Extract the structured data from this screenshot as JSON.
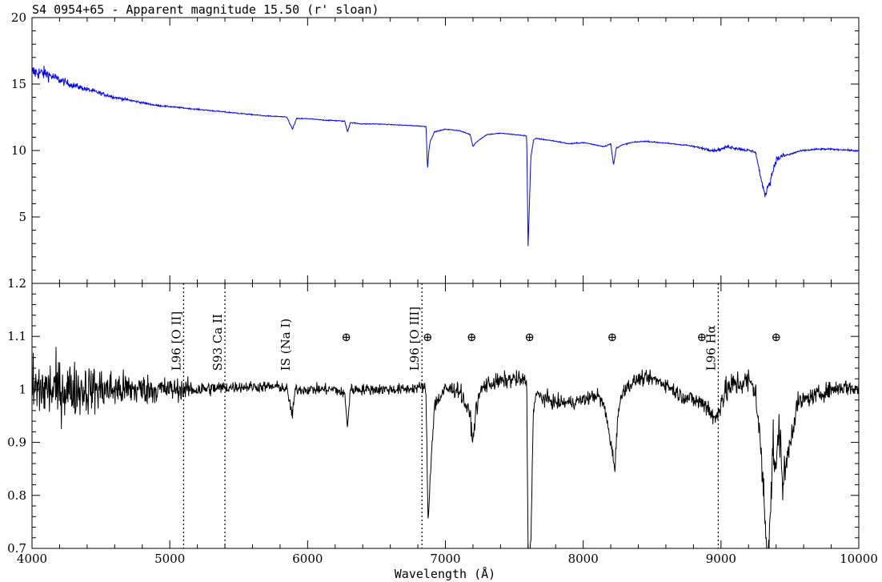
{
  "chart_data": [
    {
      "type": "line",
      "title": "S4 0954+65 - Apparent magnitude 15.50 (r' sloan)",
      "xlabel": "",
      "ylabel": "",
      "xlim": [
        4000,
        10000
      ],
      "ylim": [
        0,
        20
      ],
      "yticks": [
        5,
        10,
        15,
        20
      ],
      "series": [
        {
          "color": "#0000ff",
          "x": [
            4000,
            4100,
            4200,
            4300,
            4400,
            4500,
            4600,
            4700,
            4800,
            4900,
            5000,
            5100,
            5200,
            5300,
            5400,
            5500,
            5600,
            5700,
            5800,
            5850,
            5890,
            5920,
            6000,
            6100,
            6200,
            6270,
            6290,
            6310,
            6400,
            6500,
            6600,
            6700,
            6800,
            6860,
            6870,
            6880,
            6890,
            6920,
            7000,
            7100,
            7180,
            7200,
            7220,
            7260,
            7300,
            7400,
            7500,
            7590,
            7600,
            7610,
            7620,
            7640,
            7660,
            7700,
            7800,
            7900,
            8000,
            8100,
            8150,
            8200,
            8220,
            8240,
            8280,
            8350,
            8450,
            8550,
            8650,
            8750,
            8800,
            8850,
            8900,
            8950,
            9000,
            9050,
            9100,
            9150,
            9200,
            9250,
            9300,
            9320,
            9340,
            9360,
            9380,
            9400,
            9450,
            9500,
            9550,
            9600,
            9650,
            9700,
            9800,
            9900,
            10000
          ],
          "values": [
            15.9,
            15.8,
            15.3,
            14.9,
            14.6,
            14.3,
            14.0,
            13.8,
            13.6,
            13.4,
            13.3,
            13.2,
            13.1,
            13.0,
            12.9,
            12.8,
            12.7,
            12.6,
            12.55,
            12.5,
            11.6,
            12.4,
            12.4,
            12.3,
            12.25,
            12.2,
            11.4,
            12.1,
            12.0,
            12.0,
            11.95,
            11.9,
            11.85,
            11.8,
            8.6,
            10.0,
            10.7,
            11.4,
            11.6,
            11.5,
            11.2,
            10.3,
            10.6,
            10.9,
            11.2,
            11.3,
            11.2,
            11.1,
            2.8,
            6.0,
            9.5,
            10.8,
            10.9,
            10.85,
            10.7,
            10.5,
            10.6,
            10.4,
            10.3,
            10.5,
            8.9,
            10.2,
            10.4,
            10.6,
            10.7,
            10.6,
            10.5,
            10.4,
            10.3,
            10.2,
            10.1,
            10.0,
            10.1,
            10.3,
            10.2,
            10.1,
            10.0,
            9.9,
            7.4,
            6.6,
            7.3,
            7.8,
            8.6,
            9.3,
            9.6,
            9.7,
            9.9,
            10.0,
            10.05,
            10.1,
            10.1,
            10.05,
            9.95
          ],
          "noise": [
            1.2,
            0.9,
            0.6,
            0.45,
            0.35,
            0.28,
            0.22,
            0.18,
            0.15,
            0.12,
            0.1,
            0.1,
            0.09,
            0.09,
            0.08,
            0.08,
            0.07,
            0.07,
            0.07,
            0.07,
            0.07,
            0.07,
            0.07,
            0.07,
            0.07,
            0.07,
            0.07,
            0.07,
            0.06,
            0.06,
            0.06,
            0.06,
            0.06,
            0.06,
            0.06,
            0.06,
            0.06,
            0.06,
            0.06,
            0.06,
            0.06,
            0.06,
            0.06,
            0.06,
            0.06,
            0.06,
            0.06,
            0.06,
            0.06,
            0.06,
            0.06,
            0.08,
            0.08,
            0.08,
            0.08,
            0.08,
            0.08,
            0.08,
            0.08,
            0.08,
            0.08,
            0.08,
            0.08,
            0.08,
            0.08,
            0.08,
            0.08,
            0.1,
            0.12,
            0.15,
            0.2,
            0.2,
            0.2,
            0.25,
            0.25,
            0.25,
            0.2,
            0.2,
            0.3,
            0.3,
            0.5,
            0.6,
            0.6,
            0.5,
            0.4,
            0.15,
            0.15,
            0.12,
            0.12,
            0.12,
            0.12,
            0.12,
            0.12
          ]
        }
      ]
    },
    {
      "type": "line",
      "title": "",
      "xlabel": "Wavelength (Å)",
      "ylabel": "",
      "xlim": [
        4000,
        10000
      ],
      "ylim": [
        0.7,
        1.2
      ],
      "xticks": [
        4000,
        5000,
        6000,
        7000,
        8000,
        9000,
        10000
      ],
      "yticks": [
        0.7,
        0.8,
        0.9,
        1,
        1.1,
        1.2
      ],
      "ytick_labels": [
        "0.7",
        "0.8",
        "0.9",
        "1",
        "1.1",
        "1.2"
      ],
      "series": [
        {
          "color": "#000000",
          "x": [
            4000,
            4300,
            4600,
            4900,
            5200,
            5500,
            5800,
            5850,
            5890,
            5910,
            6000,
            6200,
            6270,
            6290,
            6310,
            6500,
            6700,
            6850,
            6860,
            6875,
            6890,
            6920,
            7000,
            7100,
            7180,
            7200,
            7220,
            7260,
            7300,
            7500,
            7590,
            7600,
            7610,
            7620,
            7640,
            7660,
            7700,
            7800,
            7900,
            8000,
            8100,
            8150,
            8180,
            8200,
            8230,
            8250,
            8290,
            8400,
            8500,
            8600,
            8700,
            8800,
            8900,
            8960,
            9000,
            9050,
            9100,
            9200,
            9250,
            9300,
            9320,
            9340,
            9360,
            9380,
            9400,
            9420,
            9450,
            9500,
            9550,
            9600,
            9700,
            9800,
            9900,
            10000
          ],
          "values": [
            1.0,
            1.0,
            1.0,
            1.0,
            1.0,
            1.005,
            1.005,
            1.0,
            0.95,
            1.0,
            1.0,
            1.0,
            0.99,
            0.93,
            1.0,
            1.0,
            1.0,
            1.005,
            0.98,
            0.74,
            0.84,
            0.97,
            1.0,
            1.0,
            0.95,
            0.9,
            0.96,
            1.0,
            1.01,
            1.02,
            1.015,
            0.69,
            0.66,
            0.72,
            0.97,
            0.99,
            0.985,
            0.975,
            0.975,
            0.98,
            0.99,
            0.97,
            0.93,
            0.9,
            0.85,
            0.95,
            1.0,
            1.02,
            1.02,
            1.01,
            0.99,
            0.98,
            0.97,
            0.94,
            0.98,
            1.0,
            1.01,
            1.015,
            1.0,
            0.85,
            0.75,
            0.7,
            0.78,
            0.9,
            0.83,
            0.94,
            0.82,
            0.9,
            0.97,
            0.98,
            0.99,
            1.0,
            1.005,
            1.0
          ],
          "noise": [
            0.12,
            0.1,
            0.07,
            0.05,
            0.03,
            0.02,
            0.02,
            0.02,
            0.02,
            0.02,
            0.02,
            0.02,
            0.02,
            0.02,
            0.02,
            0.02,
            0.02,
            0.02,
            0.02,
            0.03,
            0.03,
            0.03,
            0.03,
            0.03,
            0.03,
            0.03,
            0.03,
            0.03,
            0.03,
            0.03,
            0.03,
            0.03,
            0.03,
            0.03,
            0.03,
            0.03,
            0.03,
            0.025,
            0.025,
            0.025,
            0.025,
            0.025,
            0.025,
            0.025,
            0.025,
            0.025,
            0.025,
            0.025,
            0.025,
            0.025,
            0.03,
            0.03,
            0.04,
            0.04,
            0.05,
            0.05,
            0.05,
            0.05,
            0.05,
            0.07,
            0.09,
            0.1,
            0.1,
            0.1,
            0.09,
            0.08,
            0.07,
            0.05,
            0.04,
            0.03,
            0.03,
            0.03,
            0.03,
            0.03
          ]
        }
      ],
      "lines": [
        {
          "label": "L96 [O II]",
          "x": 5100,
          "dashed": true
        },
        {
          "label": "S93 Ca II",
          "x": 5400,
          "dashed": true
        },
        {
          "label": "IS (Na I)",
          "x": 5893,
          "dashed": false
        },
        {
          "label": "L96 [O III]",
          "x": 6830,
          "dashed": true
        },
        {
          "label": "L96 Hα",
          "x": 8980,
          "dashed": true
        }
      ],
      "telluric_symbol": "⊕",
      "telluric": [
        {
          "x": 6280,
          "y": 1.1
        },
        {
          "x": 6870,
          "y": 1.1
        },
        {
          "x": 7190,
          "y": 1.1
        },
        {
          "x": 7610,
          "y": 1.1
        },
        {
          "x": 8210,
          "y": 1.1
        },
        {
          "x": 8860,
          "y": 1.1
        },
        {
          "x": 9400,
          "y": 1.1
        }
      ]
    }
  ]
}
